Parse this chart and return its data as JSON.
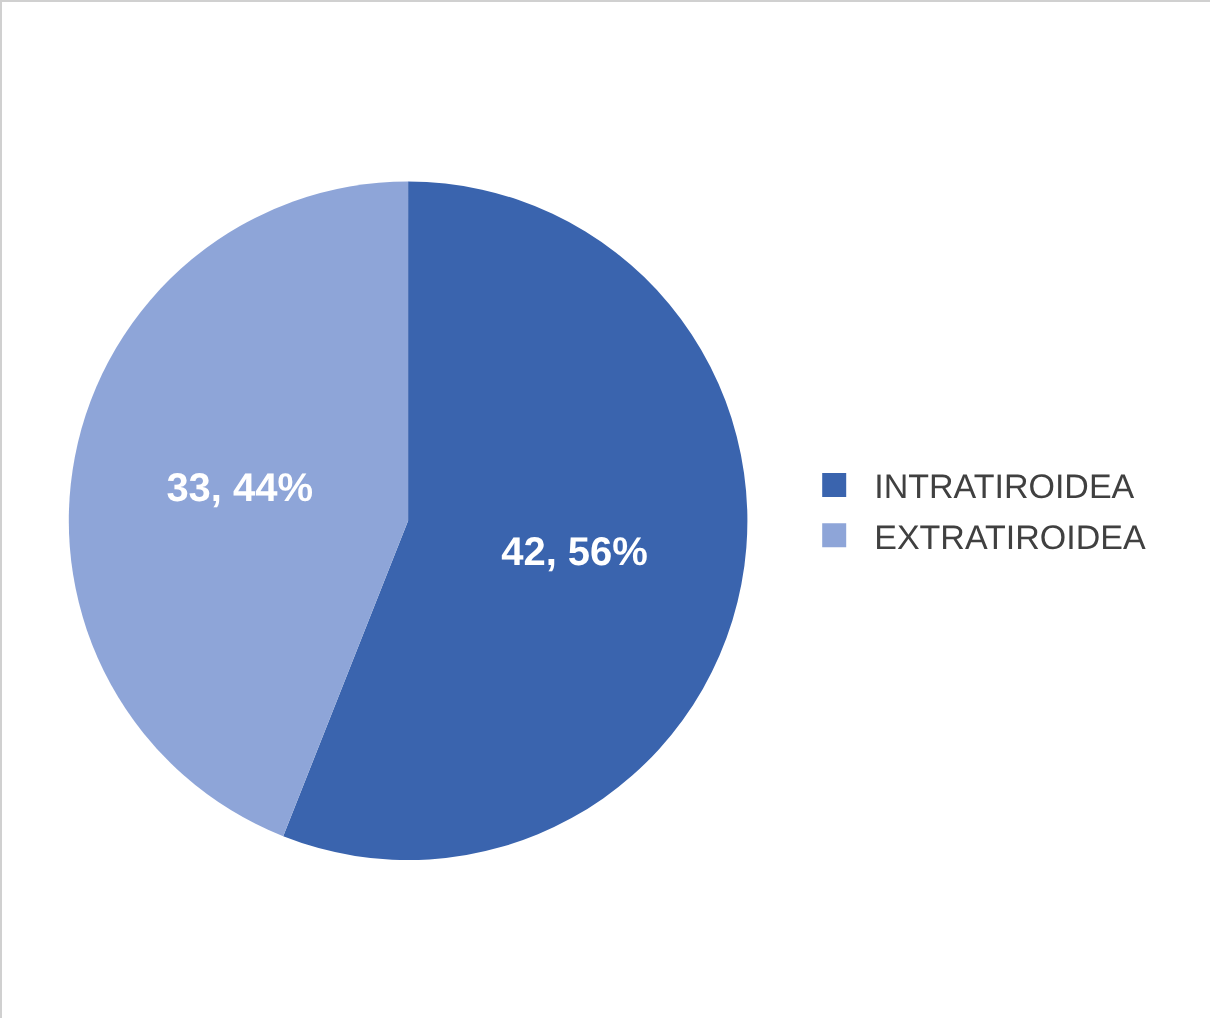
{
  "chart_data": {
    "type": "pie",
    "categories": [
      "INTRATIROIDEA",
      "EXTRATIROIDEA"
    ],
    "values": [
      42,
      33
    ],
    "colors": [
      "#3a64ae",
      "#8ea5d8"
    ],
    "value_labels": [
      "42, 56%",
      "33, 44%"
    ],
    "legend": "right"
  }
}
